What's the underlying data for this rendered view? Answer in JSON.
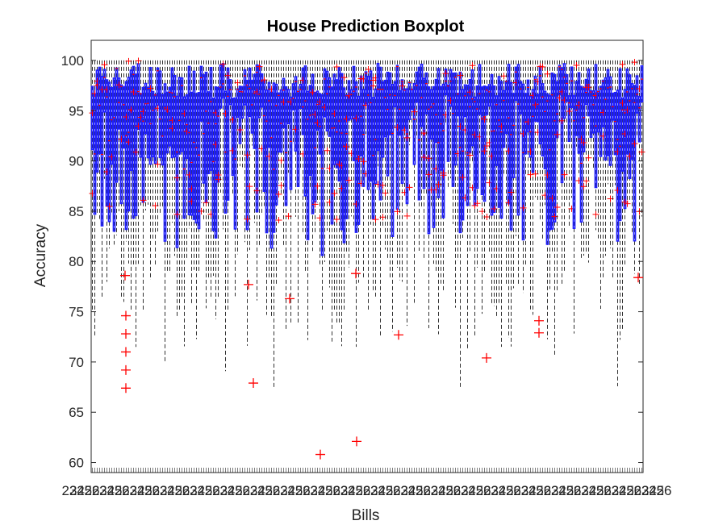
{
  "chart_data": {
    "type": "boxplot",
    "title": "House Prediction Boxplot",
    "xlabel": "Bills",
    "ylabel": "Accuracy",
    "ylim": [
      59,
      102
    ],
    "yticks": [
      60,
      65,
      70,
      75,
      80,
      85,
      90,
      95,
      100
    ],
    "xtick_labels": [
      "23",
      "24",
      "25",
      "26"
    ],
    "grid": false,
    "colors": {
      "box": "#1f1fff",
      "whisker": "#000000",
      "median": "#ff0000",
      "outlier": "#ff0000",
      "axes": "#262626"
    },
    "highlighted_outliers": [
      {
        "y": 67.4
      },
      {
        "y": 69.2
      },
      {
        "y": 71.0
      },
      {
        "y": 72.8
      },
      {
        "y": 74.6
      },
      {
        "y": 78.6
      },
      {
        "y": 67.9
      },
      {
        "y": 77.7
      },
      {
        "y": 76.3
      },
      {
        "y": 60.8
      },
      {
        "y": 62.1
      },
      {
        "y": 78.8
      },
      {
        "y": 72.7
      },
      {
        "y": 70.4
      },
      {
        "y": 74.1
      },
      {
        "y": 72.9
      },
      {
        "y": 78.4
      }
    ]
  }
}
